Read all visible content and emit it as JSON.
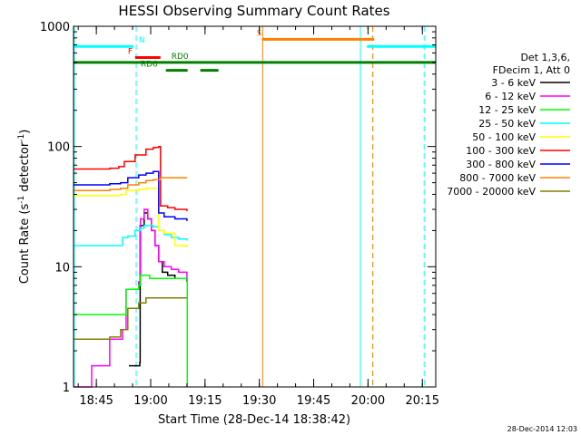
{
  "chart_data": {
    "type": "line",
    "title": "HESSI Observing Summary Count Rates",
    "xlabel": "Start Time (28-Dec-14 18:38:42)",
    "ylabel_parts": [
      "Count Rate (s",
      "-1",
      " detector",
      "-1",
      ")"
    ],
    "ylabel": "Count Rate (s-1 detector-1)",
    "yscale": "log",
    "ylim": [
      1,
      1000
    ],
    "y_ticks": [
      1,
      10,
      100,
      1000
    ],
    "y_tick_labels": [
      "1",
      "10",
      "100",
      "1000"
    ],
    "x_units": "minutes after 18:38:42",
    "xlim": [
      0,
      100
    ],
    "x_ticks": [
      6.3,
      21.3,
      36.3,
      51.3,
      66.3,
      81.3,
      96.3
    ],
    "x_tick_labels": [
      "18:45",
      "19:00",
      "19:15",
      "19:30",
      "19:45",
      "20:00",
      "20:15"
    ],
    "legend": {
      "placement": "right",
      "header": [
        "Det 1,3,6,",
        "FDecim 1, Att 0"
      ],
      "entries": [
        {
          "label": "3 - 6 keV",
          "color": "#000000"
        },
        {
          "label": "6 - 12 keV",
          "color": "#ff00ff"
        },
        {
          "label": "12 - 25 keV",
          "color": "#00ff00"
        },
        {
          "label": "25 - 50 keV",
          "color": "#00ffff"
        },
        {
          "label": "50 - 100 keV",
          "color": "#ffff00"
        },
        {
          "label": "100 - 300 keV",
          "color": "#ff0000"
        },
        {
          "label": "300 - 800 keV",
          "color": "#0000ff"
        },
        {
          "label": "800 - 7000 keV",
          "color": "#ff8000"
        },
        {
          "label": "7000 - 20000 keV",
          "color": "#808000"
        }
      ]
    },
    "series": [
      {
        "name": "3 - 6 keV",
        "color": "#000000",
        "x": [
          15.3,
          18.3,
          18.4,
          19.5,
          20.5,
          21.5,
          22.5,
          23.5,
          24.5,
          26,
          28,
          31.3
        ],
        "y": [
          1.5,
          1.6,
          22,
          28,
          25,
          20,
          15,
          11,
          9,
          8.5,
          8,
          7.5
        ]
      },
      {
        "name": "6 - 12 keV",
        "color": "#ff00ff",
        "x": [
          0,
          5,
          10,
          13.5,
          14.5,
          18,
          18.5,
          19.5,
          20.5,
          21.5,
          22.5,
          23.5,
          25,
          27,
          29,
          31.3
        ],
        "y": [
          1,
          1.5,
          2.5,
          3,
          6.5,
          7.5,
          25,
          30,
          25,
          20,
          15,
          11,
          10,
          9.5,
          9,
          8
        ]
      },
      {
        "name": "12 - 25 keV",
        "color": "#00ff00",
        "x": [
          0,
          5,
          10,
          13.5,
          14.5,
          18,
          18.5,
          21,
          25,
          31.3,
          31.4
        ],
        "y": [
          4,
          4,
          4,
          4,
          6.5,
          7,
          8.5,
          8,
          8,
          8,
          1
        ]
      },
      {
        "name": "25 - 50 keV",
        "color": "#00ffff",
        "x": [
          0,
          5,
          10,
          12.5,
          13.5,
          15,
          17,
          18.5,
          19.5,
          21,
          22,
          23.5,
          25,
          27,
          29,
          31.3
        ],
        "y": [
          15,
          15,
          15,
          15,
          17.5,
          18,
          20,
          21,
          22,
          22,
          21.5,
          20,
          18.5,
          17.5,
          17,
          16.5
        ]
      },
      {
        "name": "50 - 100 keV",
        "color": "#ffff00",
        "x": [
          0,
          5,
          10,
          13,
          14.5,
          18,
          20,
          22,
          23.5,
          25,
          28,
          31.3
        ],
        "y": [
          39,
          39,
          39,
          40,
          43,
          44,
          45,
          45,
          20,
          19,
          15,
          14.5
        ]
      },
      {
        "name": "100 - 300 keV",
        "color": "#ff0000",
        "x": [
          0,
          5,
          10,
          12.5,
          14,
          17,
          20,
          22,
          23.5,
          24,
          26,
          28,
          31.3
        ],
        "y": [
          65,
          65,
          66,
          68,
          75,
          85,
          95,
          98,
          100,
          32,
          31,
          30,
          29
        ]
      },
      {
        "name": "300 - 800 keV",
        "color": "#0000ff",
        "x": [
          0,
          5,
          10,
          13,
          15,
          18,
          20,
          22,
          23.5,
          25,
          28,
          31.3
        ],
        "y": [
          48,
          48,
          49,
          50,
          55,
          58,
          60,
          62,
          28,
          26,
          25,
          24
        ]
      },
      {
        "name": "800 - 7000 keV",
        "color": "#ff8000",
        "x": [
          0,
          5,
          10,
          13,
          15,
          18,
          20,
          22,
          24,
          26,
          28,
          31.3
        ],
        "y": [
          43,
          43,
          44,
          45,
          48,
          50,
          52,
          53,
          55,
          55,
          55,
          55
        ]
      },
      {
        "name": "7000 - 20000 keV",
        "color": "#808000",
        "x": [
          0,
          5,
          10,
          13,
          15,
          18,
          20,
          22,
          24,
          26,
          28,
          31.3
        ],
        "y": [
          2.5,
          2.5,
          2.6,
          3,
          4.5,
          5,
          5.5,
          5.5,
          5.5,
          5.5,
          5.5,
          5.5
        ]
      }
    ],
    "flag_bars": [
      {
        "label": "N",
        "color": "#00ffff",
        "y": 680,
        "segments": [
          [
            0,
            16.5
          ],
          [
            81,
            100
          ]
        ],
        "label_x": 18
      },
      {
        "label": "F",
        "color": "#ff0000",
        "y": 550,
        "segments": [
          [
            17,
            24
          ]
        ],
        "label_x": 15
      },
      {
        "label": "S",
        "color": "#ff8000",
        "y": 780,
        "segments": [
          [
            52,
            83
          ]
        ],
        "label_x": 50.5
      },
      {
        "label": "",
        "color": "#008000",
        "y": 500,
        "segments": [
          [
            0,
            100
          ]
        ],
        "label_x": null
      },
      {
        "label": "RD0",
        "color": "#008000",
        "y": 500,
        "segments": [],
        "label_x": 27
      },
      {
        "label": "RD6",
        "color": "#008000",
        "y": 430,
        "segments": [
          [
            25.5,
            31.5
          ],
          [
            35,
            40
          ]
        ],
        "label_x": 18.5
      }
    ],
    "vertical_lines": [
      {
        "x": 0.2,
        "color": "#00ffff",
        "style": "solid"
      },
      {
        "x": 17.3,
        "color": "#00ffff",
        "style": "dashed"
      },
      {
        "x": 52.2,
        "color": "#ff8000",
        "style": "solid"
      },
      {
        "x": 79.2,
        "color": "#00ffff",
        "style": "solid"
      },
      {
        "x": 82.6,
        "color": "#ff8000",
        "style": "dashed"
      },
      {
        "x": 96.8,
        "color": "#00ffff",
        "style": "dashed"
      }
    ],
    "timestamp": "28-Dec-2014 12:03"
  }
}
